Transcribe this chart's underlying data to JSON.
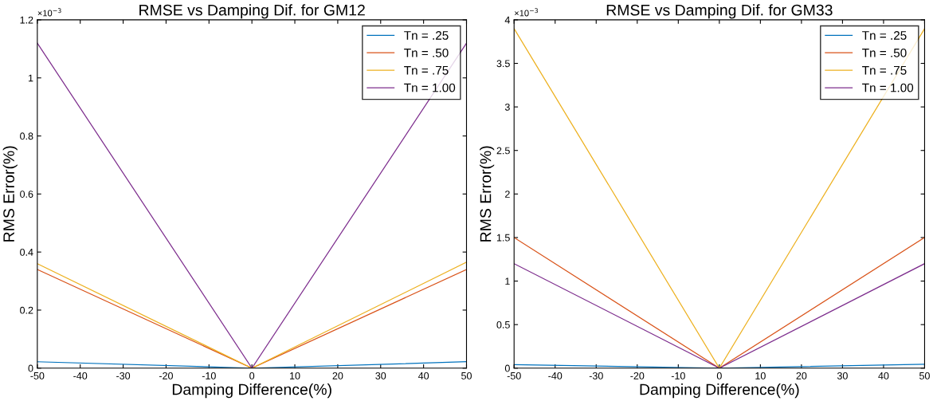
{
  "chart_data": [
    {
      "type": "line",
      "title": "RMSE vs Damping Dif. for GM12",
      "xlabel": "Damping Difference(%)",
      "ylabel": "RMS Error(%)",
      "annotations": [
        "×10$^{−3}$"
      ],
      "x": [
        -50,
        0,
        50
      ],
      "series": [
        {
          "name": "Tn = .25",
          "color": "#0072bd",
          "values": [
            0.022,
            0,
            0.022
          ]
        },
        {
          "name": "Tn = .50",
          "color": "#d95319",
          "values": [
            0.34,
            0,
            0.34
          ]
        },
        {
          "name": "Tn = .75",
          "color": "#edb120",
          "values": [
            0.36,
            0,
            0.365
          ]
        },
        {
          "name": "Tn = 1.00",
          "color": "#7e2f8e",
          "values": [
            1.12,
            0,
            1.12
          ]
        }
      ],
      "xlim": [
        -50,
        50
      ],
      "xticks": [
        -50,
        -40,
        -30,
        -20,
        -10,
        0,
        10,
        20,
        30,
        40,
        50
      ],
      "ylim": [
        0,
        1.2
      ],
      "yticks": [
        0,
        0.2,
        0.4,
        0.6,
        0.8,
        1,
        1.2
      ],
      "legend": "top right",
      "grid": false,
      "marker": "none",
      "line_style": "solid"
    },
    {
      "type": "line",
      "title": "RMSE vs Damping Dif. for GM33",
      "xlabel": "Damping Difference(%)",
      "ylabel": "RMS Error(%)",
      "annotations": [
        "×10$^{−3}$"
      ],
      "x": [
        -50,
        0,
        50
      ],
      "series": [
        {
          "name": "Tn = .25",
          "color": "#0072bd",
          "values": [
            0.04,
            0,
            0.045
          ]
        },
        {
          "name": "Tn = .50",
          "color": "#d95319",
          "values": [
            1.5,
            0,
            1.5
          ]
        },
        {
          "name": "Tn = .75",
          "color": "#edb120",
          "values": [
            3.9,
            0,
            3.9
          ]
        },
        {
          "name": "Tn = 1.00",
          "color": "#7e2f8e",
          "values": [
            1.2,
            0,
            1.2
          ]
        }
      ],
      "xlim": [
        -50,
        50
      ],
      "xticks": [
        -50,
        -40,
        -30,
        -20,
        -10,
        0,
        10,
        20,
        30,
        40,
        50
      ],
      "ylim": [
        0,
        4
      ],
      "yticks": [
        0,
        0.5,
        1,
        1.5,
        2,
        2.5,
        3,
        3.5,
        4
      ],
      "legend": "top right",
      "grid": false,
      "marker": "none",
      "line_style": "solid"
    }
  ]
}
